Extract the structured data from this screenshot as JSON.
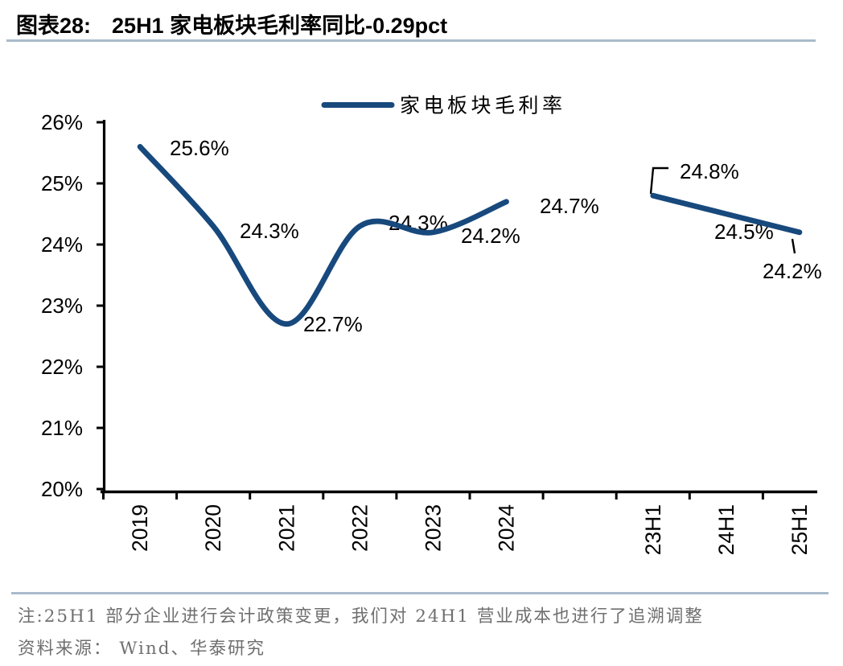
{
  "header": {
    "figure_label": "图表28:",
    "figure_title": "25H1 家电板块毛利率同比-0.29pct"
  },
  "chart_data": {
    "type": "line",
    "title": "25H1 家电板块毛利率同比-0.29pct",
    "legend": [
      "家电板块毛利率"
    ],
    "legend_position": "top-center",
    "categories": [
      "2019",
      "2020",
      "2021",
      "2022",
      "2023",
      "2024",
      "",
      "23H1",
      "24H1",
      "25H1"
    ],
    "series": [
      {
        "name": "家电板块毛利率",
        "segment": "annual",
        "smooth": true,
        "categories": [
          "2019",
          "2020",
          "2021",
          "2022",
          "2023",
          "2024"
        ],
        "values": [
          25.6,
          24.3,
          22.7,
          24.3,
          24.2,
          24.7
        ],
        "labels": [
          "25.6%",
          "24.3%",
          "22.7%",
          "24.3%",
          "24.2%",
          "24.7%"
        ]
      },
      {
        "name": "家电板块毛利率",
        "segment": "half_year",
        "smooth": false,
        "categories": [
          "23H1",
          "24H1",
          "25H1"
        ],
        "values": [
          24.8,
          24.5,
          24.2
        ],
        "labels": [
          "24.8%",
          "24.5%",
          "24.2%"
        ]
      }
    ],
    "ylim": [
      20,
      26
    ],
    "ytick_labels": [
      "20%",
      "21%",
      "22%",
      "23%",
      "24%",
      "25%",
      "26%"
    ],
    "grid": false,
    "line_color": "#17497d"
  },
  "footer": {
    "note": "注:25H1 部分企业进行会计政策变更，我们对 24H1 营业成本也进行了追溯调整",
    "source": "资料来源： Wind、华泰研究"
  },
  "colors": {
    "series_line": "#17497d",
    "divider": "#a9bacb",
    "footer_text": "#6f6f6f",
    "axis": "#000000",
    "label_text": "#000000",
    "background": "#ffffff"
  }
}
